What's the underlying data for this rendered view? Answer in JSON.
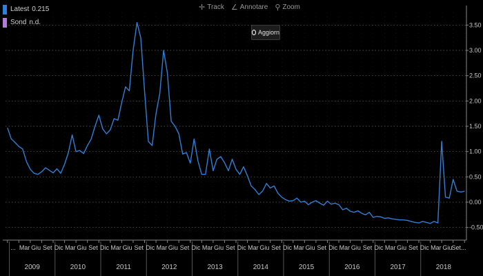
{
  "legend": [
    {
      "label": "Latest",
      "value": "0.215",
      "color": "#2f7fd8"
    },
    {
      "label": "Sond",
      "value": "n.d.",
      "color": "#b07cd8"
    }
  ],
  "toolbar": {
    "track_label": "Track",
    "annotate_label": "Annotare",
    "zoom_label": "Zoom",
    "refresh_label": "Aggiorn"
  },
  "colors": {
    "background": "#000000",
    "line": "#2f7fd8",
    "grid": "#6a6a6a",
    "axis_text": "#c8c8c8"
  },
  "chart_data": {
    "type": "line",
    "title": "",
    "xlabel": "",
    "ylabel": "",
    "ylim": [
      -0.75,
      3.75
    ],
    "y_ticks": [
      3.5,
      3.0,
      2.5,
      2.0,
      1.5,
      1.0,
      0.5,
      0.0,
      -0.5
    ],
    "y_tick_labels": [
      "3.50",
      "3.00",
      "2.50",
      "2.00",
      "1.50",
      "1.00",
      "0.50",
      "0.00",
      "-0.50"
    ],
    "grid": true,
    "y_axis_position": "right",
    "x_range": [
      "2008-12",
      "2018-12"
    ],
    "x_month_tick_labels": [
      "...",
      "Mar",
      "Giu",
      "Set",
      "Dic",
      "Mar",
      "Giu",
      "Set",
      "Dic",
      "Mar",
      "Giu",
      "Set",
      "Dic",
      "Mar",
      "Giu",
      "Set",
      "Dic",
      "Mar",
      "Giu",
      "Set",
      "Dic",
      "Mar",
      "Giu",
      "Set",
      "Dic",
      "Mar",
      "Giu",
      "Set",
      "Dic",
      "Mar",
      "Giu",
      "Set",
      "Dic",
      "Mar",
      "Giu",
      "Set",
      "Dic",
      "Mar",
      "Giu",
      "Set..."
    ],
    "x_year_labels": [
      "2009",
      "2010",
      "2011",
      "2012",
      "2013",
      "2014",
      "2015",
      "2016",
      "2017",
      "2018"
    ],
    "series": [
      {
        "name": "Latest",
        "points": [
          [
            "2008-12",
            1.47
          ],
          [
            "2009-01",
            1.25
          ],
          [
            "2009-02",
            1.18
          ],
          [
            "2009-03",
            1.1
          ],
          [
            "2009-04",
            1.05
          ],
          [
            "2009-05",
            0.8
          ],
          [
            "2009-06",
            0.65
          ],
          [
            "2009-07",
            0.57
          ],
          [
            "2009-08",
            0.55
          ],
          [
            "2009-09",
            0.6
          ],
          [
            "2009-10",
            0.68
          ],
          [
            "2009-11",
            0.63
          ],
          [
            "2009-12",
            0.58
          ],
          [
            "2010-01",
            0.66
          ],
          [
            "2010-02",
            0.57
          ],
          [
            "2010-03",
            0.75
          ],
          [
            "2010-04",
            0.98
          ],
          [
            "2010-05",
            1.33
          ],
          [
            "2010-06",
            1.0
          ],
          [
            "2010-07",
            1.02
          ],
          [
            "2010-08",
            0.96
          ],
          [
            "2010-09",
            1.12
          ],
          [
            "2010-10",
            1.25
          ],
          [
            "2010-11",
            1.5
          ],
          [
            "2010-12",
            1.72
          ],
          [
            "2011-01",
            1.45
          ],
          [
            "2011-02",
            1.35
          ],
          [
            "2011-03",
            1.43
          ],
          [
            "2011-04",
            1.65
          ],
          [
            "2011-05",
            1.62
          ],
          [
            "2011-06",
            1.97
          ],
          [
            "2011-07",
            2.28
          ],
          [
            "2011-08",
            2.2
          ],
          [
            "2011-09",
            3.0
          ],
          [
            "2011-10",
            3.55
          ],
          [
            "2011-11",
            3.25
          ],
          [
            "2011-12",
            2.2
          ],
          [
            "2012-01",
            1.2
          ],
          [
            "2012-02",
            1.12
          ],
          [
            "2012-03",
            1.75
          ],
          [
            "2012-04",
            2.15
          ],
          [
            "2012-05",
            3.0
          ],
          [
            "2012-06",
            2.55
          ],
          [
            "2012-07",
            1.6
          ],
          [
            "2012-08",
            1.5
          ],
          [
            "2012-09",
            1.35
          ],
          [
            "2012-10",
            0.95
          ],
          [
            "2012-11",
            0.98
          ],
          [
            "2012-12",
            0.77
          ],
          [
            "2013-01",
            1.25
          ],
          [
            "2013-02",
            0.82
          ],
          [
            "2013-03",
            0.55
          ],
          [
            "2013-04",
            0.55
          ],
          [
            "2013-05",
            1.05
          ],
          [
            "2013-06",
            0.62
          ],
          [
            "2013-07",
            0.85
          ],
          [
            "2013-08",
            0.9
          ],
          [
            "2013-09",
            0.78
          ],
          [
            "2013-10",
            0.62
          ],
          [
            "2013-11",
            0.85
          ],
          [
            "2013-12",
            0.65
          ],
          [
            "2014-01",
            0.55
          ],
          [
            "2014-02",
            0.7
          ],
          [
            "2014-03",
            0.52
          ],
          [
            "2014-04",
            0.32
          ],
          [
            "2014-05",
            0.25
          ],
          [
            "2014-06",
            0.15
          ],
          [
            "2014-07",
            0.22
          ],
          [
            "2014-08",
            0.37
          ],
          [
            "2014-09",
            0.28
          ],
          [
            "2014-10",
            0.32
          ],
          [
            "2014-11",
            0.18
          ],
          [
            "2014-12",
            0.1
          ],
          [
            "2015-01",
            0.05
          ],
          [
            "2015-02",
            0.02
          ],
          [
            "2015-03",
            0.03
          ],
          [
            "2015-04",
            0.08
          ],
          [
            "2015-05",
            0.0
          ],
          [
            "2015-06",
            0.02
          ],
          [
            "2015-07",
            -0.05
          ],
          [
            "2015-08",
            0.0
          ],
          [
            "2015-09",
            0.03
          ],
          [
            "2015-10",
            -0.02
          ],
          [
            "2015-11",
            -0.06
          ],
          [
            "2015-12",
            0.02
          ],
          [
            "2016-01",
            -0.04
          ],
          [
            "2016-02",
            -0.02
          ],
          [
            "2016-03",
            -0.05
          ],
          [
            "2016-04",
            -0.15
          ],
          [
            "2016-05",
            -0.12
          ],
          [
            "2016-06",
            -0.18
          ],
          [
            "2016-07",
            -0.2
          ],
          [
            "2016-08",
            -0.17
          ],
          [
            "2016-09",
            -0.22
          ],
          [
            "2016-10",
            -0.25
          ],
          [
            "2016-11",
            -0.2
          ],
          [
            "2016-12",
            -0.3
          ],
          [
            "2017-01",
            -0.28
          ],
          [
            "2017-02",
            -0.29
          ],
          [
            "2017-03",
            -0.32
          ],
          [
            "2017-04",
            -0.31
          ],
          [
            "2017-05",
            -0.33
          ],
          [
            "2017-06",
            -0.34
          ],
          [
            "2017-07",
            -0.35
          ],
          [
            "2017-08",
            -0.35
          ],
          [
            "2017-09",
            -0.36
          ],
          [
            "2017-10",
            -0.38
          ],
          [
            "2017-11",
            -0.4
          ],
          [
            "2017-12",
            -0.41
          ],
          [
            "2018-01",
            -0.38
          ],
          [
            "2018-02",
            -0.4
          ],
          [
            "2018-03",
            -0.42
          ],
          [
            "2018-04",
            -0.38
          ],
          [
            "2018-05",
            -0.41
          ],
          [
            "2018-06",
            1.2
          ],
          [
            "2018-07",
            0.1
          ],
          [
            "2018-08",
            0.08
          ],
          [
            "2018-09",
            0.45
          ],
          [
            "2018-10",
            0.22
          ],
          [
            "2018-11",
            0.2
          ],
          [
            "2018-12",
            0.215
          ]
        ]
      }
    ]
  }
}
